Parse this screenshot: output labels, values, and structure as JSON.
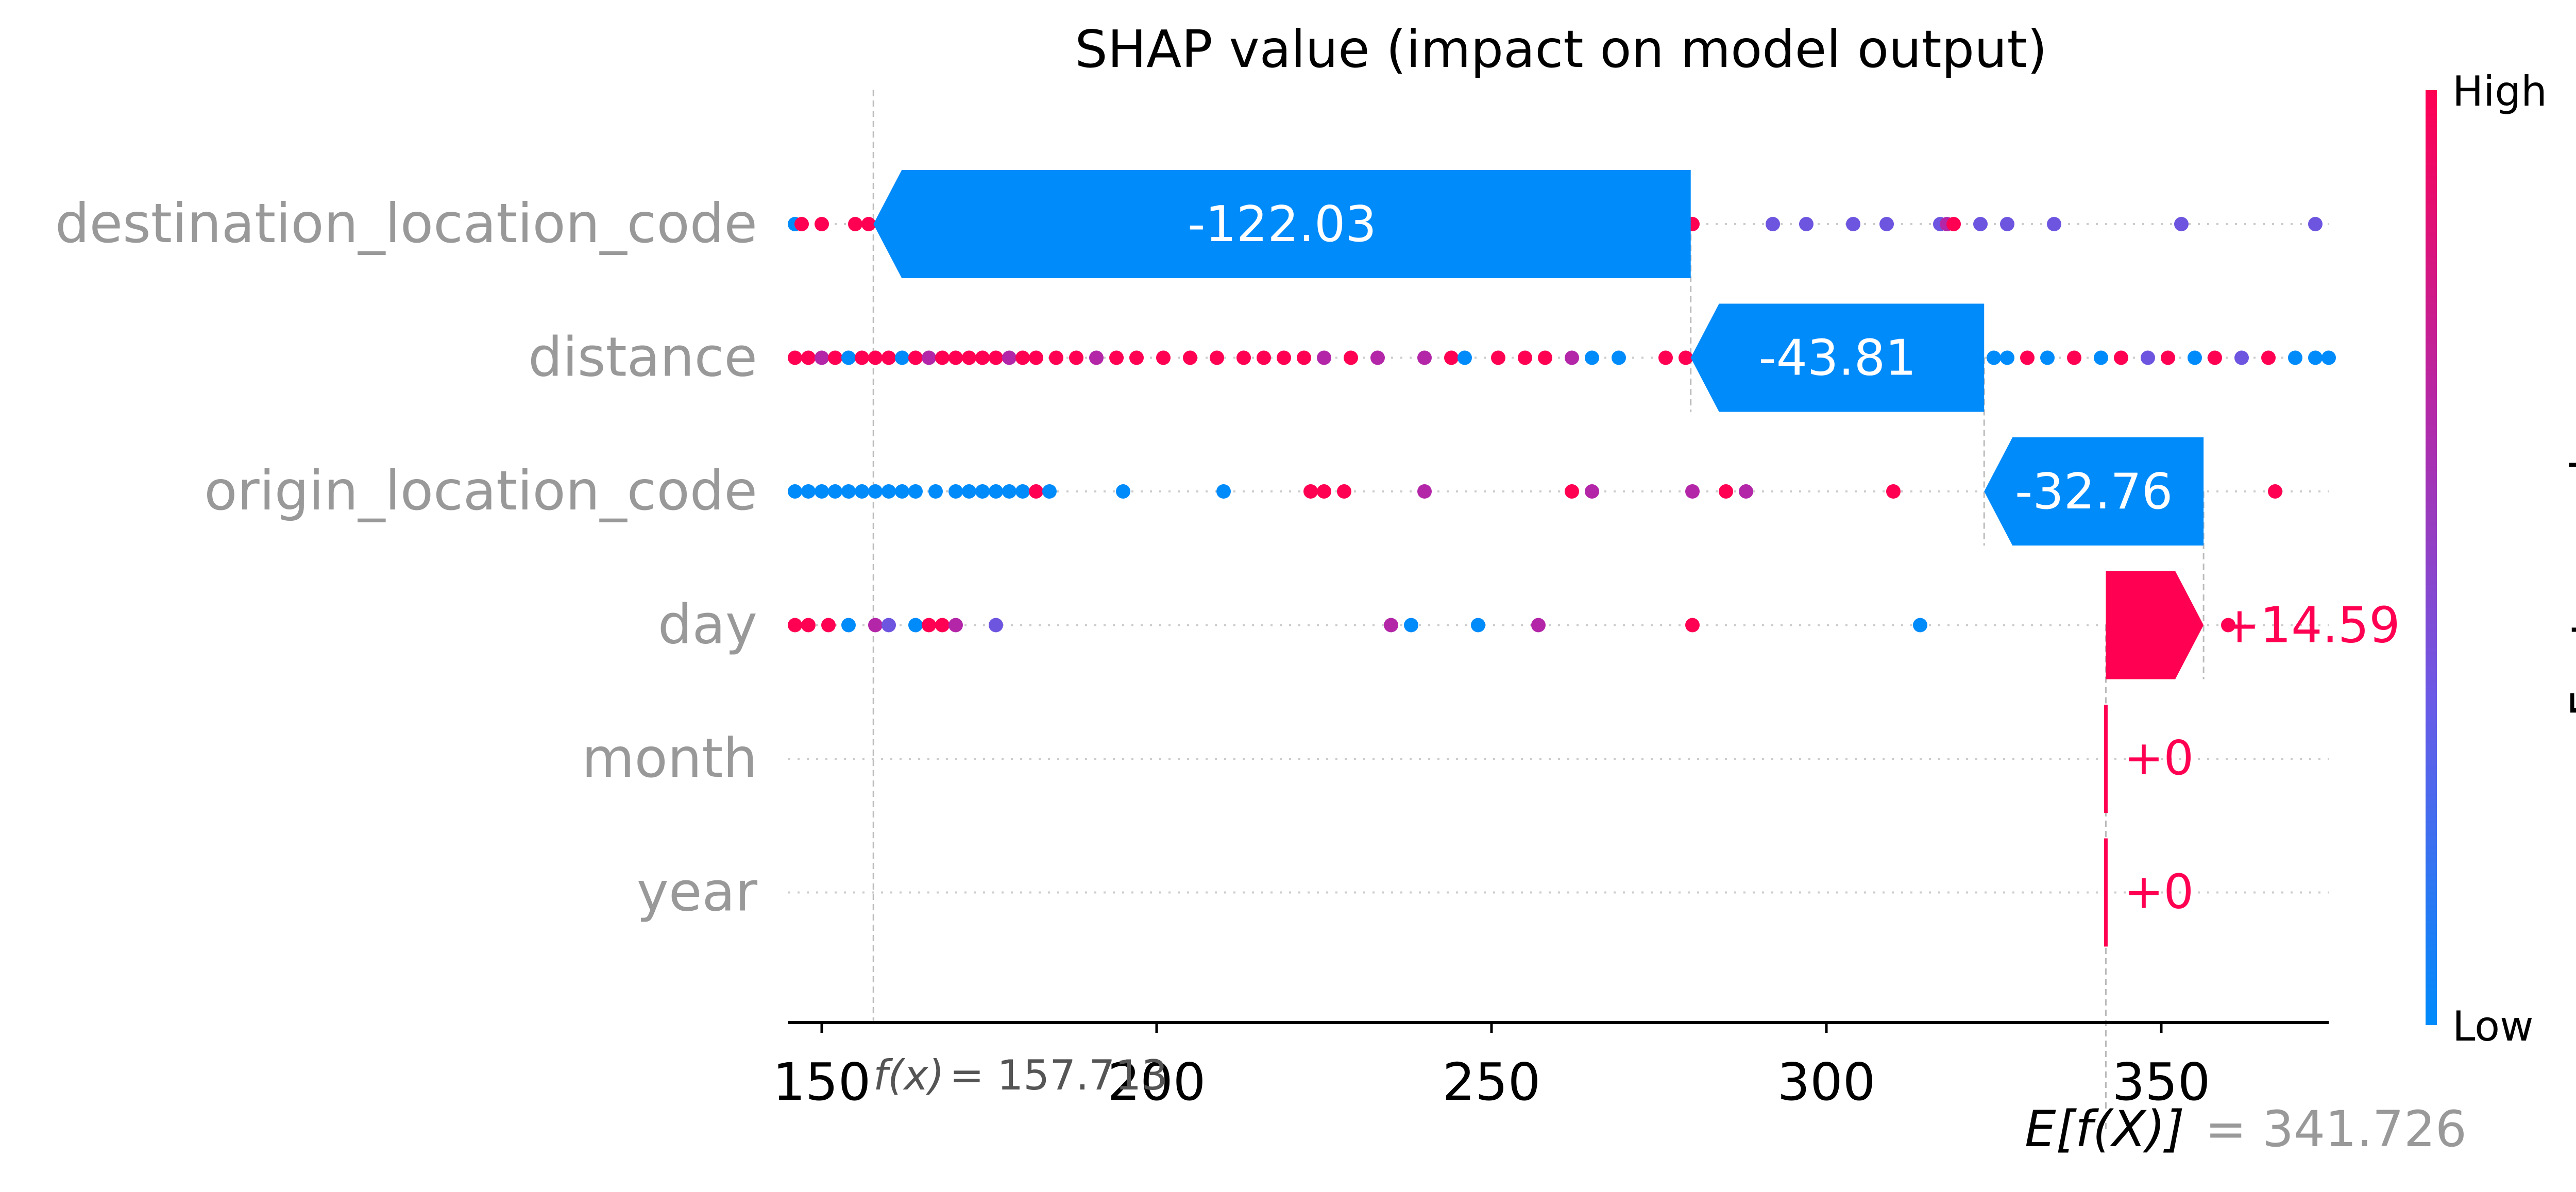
{
  "chart_data": {
    "type": "scatter",
    "title": "SHAP value (impact on model output)",
    "xlim": [
      145,
      375
    ],
    "x_ticks": [
      "150",
      "200",
      "250",
      "300",
      "350"
    ],
    "base_value": 341.726,
    "prediction": 157.713,
    "base_label": "E[f(X)]",
    "base_value_text": "= 341.726",
    "prediction_label": "f(x)",
    "prediction_value_text": "= 157.713",
    "features": [
      {
        "name": "destination_location_code",
        "contribution": -122.03,
        "contribution_label": "-122.03",
        "points": [
          [
            146,
            "purple"
          ],
          [
            147,
            "pink"
          ],
          [
            150,
            "pink"
          ],
          [
            155,
            "pink"
          ],
          [
            157,
            "pink"
          ],
          [
            159,
            "pink"
          ],
          [
            160,
            "pink"
          ],
          [
            162,
            "pink"
          ],
          [
            164,
            "magenta"
          ],
          [
            166,
            "pink"
          ],
          [
            168,
            "pink"
          ],
          [
            170,
            "pink"
          ],
          [
            172,
            "pink"
          ],
          [
            174,
            "pink"
          ],
          [
            176,
            "pink"
          ],
          [
            178,
            "magenta"
          ],
          [
            180,
            "pink"
          ],
          [
            182,
            "pink"
          ],
          [
            184,
            "violet"
          ],
          [
            186,
            "pink"
          ],
          [
            188,
            "magenta"
          ],
          [
            190,
            "pink"
          ],
          [
            192,
            "pink"
          ],
          [
            194,
            "pink"
          ],
          [
            196,
            "pink"
          ],
          [
            198,
            "pink"
          ],
          [
            200,
            "violet"
          ],
          [
            203,
            "pink"
          ],
          [
            206,
            "magenta"
          ],
          [
            209,
            "pink"
          ],
          [
            212,
            "pink"
          ],
          [
            216,
            "magenta"
          ],
          [
            220,
            "pink"
          ],
          [
            224,
            "pink"
          ],
          [
            228,
            "violet"
          ],
          [
            232,
            "pink"
          ],
          [
            236,
            "pink"
          ],
          [
            240,
            "pink"
          ],
          [
            245,
            "pink"
          ],
          [
            250,
            "violet"
          ],
          [
            255,
            "pink"
          ],
          [
            258,
            "pink"
          ],
          [
            262,
            "magenta"
          ],
          [
            266,
            "pink"
          ],
          [
            270,
            "pink"
          ],
          [
            280,
            "pink"
          ],
          [
            292,
            "violet"
          ],
          [
            297,
            "violet"
          ],
          [
            304,
            "violet"
          ],
          [
            309,
            "violet"
          ],
          [
            317,
            "violet"
          ],
          [
            318,
            "magenta"
          ],
          [
            319,
            "pink"
          ],
          [
            323,
            "violet"
          ],
          [
            327,
            "violet"
          ],
          [
            334,
            "violet"
          ],
          [
            353,
            "violet"
          ],
          [
            373,
            "violet"
          ]
        ]
      },
      {
        "name": "distance",
        "contribution": -43.81,
        "contribution_label": "-43.81",
        "points": [
          [
            146,
            "pink"
          ],
          [
            148,
            "pink"
          ],
          [
            150,
            "magenta"
          ],
          [
            152,
            "pink"
          ],
          [
            154,
            "blue"
          ],
          [
            156,
            "pink"
          ],
          [
            158,
            "pink"
          ],
          [
            160,
            "pink"
          ],
          [
            162,
            "blue"
          ],
          [
            164,
            "pink"
          ],
          [
            166,
            "magenta"
          ],
          [
            168,
            "pink"
          ],
          [
            170,
            "pink"
          ],
          [
            172,
            "pink"
          ],
          [
            174,
            "pink"
          ],
          [
            176,
            "pink"
          ],
          [
            178,
            "magenta"
          ],
          [
            180,
            "pink"
          ],
          [
            182,
            "pink"
          ],
          [
            185,
            "pink"
          ],
          [
            188,
            "pink"
          ],
          [
            191,
            "magenta"
          ],
          [
            194,
            "pink"
          ],
          [
            197,
            "pink"
          ],
          [
            201,
            "pink"
          ],
          [
            205,
            "pink"
          ],
          [
            209,
            "pink"
          ],
          [
            213,
            "pink"
          ],
          [
            216,
            "pink"
          ],
          [
            219,
            "pink"
          ],
          [
            222,
            "pink"
          ],
          [
            225,
            "magenta"
          ],
          [
            229,
            "pink"
          ],
          [
            233,
            "magenta"
          ],
          [
            240,
            "magenta"
          ],
          [
            244,
            "pink"
          ],
          [
            246,
            "blue"
          ],
          [
            251,
            "pink"
          ],
          [
            255,
            "pink"
          ],
          [
            258,
            "pink"
          ],
          [
            262,
            "magenta"
          ],
          [
            265,
            "blue"
          ],
          [
            269,
            "blue"
          ],
          [
            276,
            "pink"
          ],
          [
            279,
            "pink"
          ],
          [
            283,
            "pink"
          ],
          [
            286,
            "pink"
          ],
          [
            290,
            "pink"
          ],
          [
            294,
            "pink"
          ],
          [
            298,
            "pink"
          ],
          [
            302,
            "pink"
          ],
          [
            306,
            "pink"
          ],
          [
            310,
            "pink"
          ],
          [
            314,
            "pink"
          ],
          [
            318,
            "pink"
          ],
          [
            322,
            "pink"
          ],
          [
            325,
            "blue"
          ],
          [
            327,
            "blue"
          ],
          [
            330,
            "pink"
          ],
          [
            333,
            "blue"
          ],
          [
            337,
            "pink"
          ],
          [
            341,
            "blue"
          ],
          [
            344,
            "pink"
          ],
          [
            348,
            "violet"
          ],
          [
            351,
            "pink"
          ],
          [
            355,
            "blue"
          ],
          [
            358,
            "pink"
          ],
          [
            362,
            "violet"
          ],
          [
            366,
            "pink"
          ],
          [
            370,
            "blue"
          ],
          [
            373,
            "blue"
          ],
          [
            375,
            "blue"
          ]
        ]
      },
      {
        "name": "origin_location_code",
        "contribution": -32.76,
        "contribution_label": "-32.76",
        "points": [
          [
            146,
            "blue"
          ],
          [
            148,
            "blue"
          ],
          [
            150,
            "blue"
          ],
          [
            152,
            "blue"
          ],
          [
            154,
            "blue"
          ],
          [
            156,
            "blue"
          ],
          [
            158,
            "blue"
          ],
          [
            160,
            "blue"
          ],
          [
            162,
            "blue"
          ],
          [
            164,
            "blue"
          ],
          [
            167,
            "blue"
          ],
          [
            170,
            "blue"
          ],
          [
            172,
            "blue"
          ],
          [
            174,
            "blue"
          ],
          [
            176,
            "blue"
          ],
          [
            178,
            "blue"
          ],
          [
            180,
            "blue"
          ],
          [
            182,
            "pink"
          ],
          [
            184,
            "blue"
          ],
          [
            195,
            "blue"
          ],
          [
            210,
            "blue"
          ],
          [
            223,
            "pink"
          ],
          [
            225,
            "pink"
          ],
          [
            228,
            "pink"
          ],
          [
            240,
            "magenta"
          ],
          [
            262,
            "pink"
          ],
          [
            265,
            "magenta"
          ],
          [
            280,
            "magenta"
          ],
          [
            285,
            "pink"
          ],
          [
            288,
            "magenta"
          ],
          [
            310,
            "pink"
          ],
          [
            333,
            "magenta"
          ],
          [
            367,
            "pink"
          ]
        ]
      },
      {
        "name": "day",
        "contribution": 14.59,
        "contribution_label": "+14.59",
        "points": [
          [
            146,
            "pink"
          ],
          [
            148,
            "pink"
          ],
          [
            151,
            "pink"
          ],
          [
            154,
            "blue"
          ],
          [
            158,
            "magenta"
          ],
          [
            160,
            "violet"
          ],
          [
            164,
            "blue"
          ],
          [
            166,
            "pink"
          ],
          [
            168,
            "pink"
          ],
          [
            170,
            "magenta"
          ],
          [
            176,
            "violet"
          ],
          [
            235,
            "magenta"
          ],
          [
            238,
            "blue"
          ],
          [
            248,
            "blue"
          ],
          [
            257,
            "magenta"
          ],
          [
            280,
            "pink"
          ],
          [
            314,
            "blue"
          ],
          [
            345,
            "pink"
          ],
          [
            360,
            "pink"
          ]
        ]
      },
      {
        "name": "month",
        "contribution": 0,
        "contribution_label": "+0",
        "points": []
      },
      {
        "name": "year",
        "contribution": 0,
        "contribution_label": "+0",
        "points": []
      }
    ],
    "colorbar": {
      "label": "Feature value",
      "high_label": "High",
      "low_label": "Low",
      "high_color": "#ff0052",
      "low_color": "#008bfb"
    },
    "colors": {
      "positive": "#ff0052",
      "negative": "#008bfb",
      "label_gray": "#999999",
      "point_palette": {
        "blue": "#008bfb",
        "violet": "#6e55e0",
        "magenta": "#b326a8",
        "pink": "#ff0052"
      }
    }
  }
}
